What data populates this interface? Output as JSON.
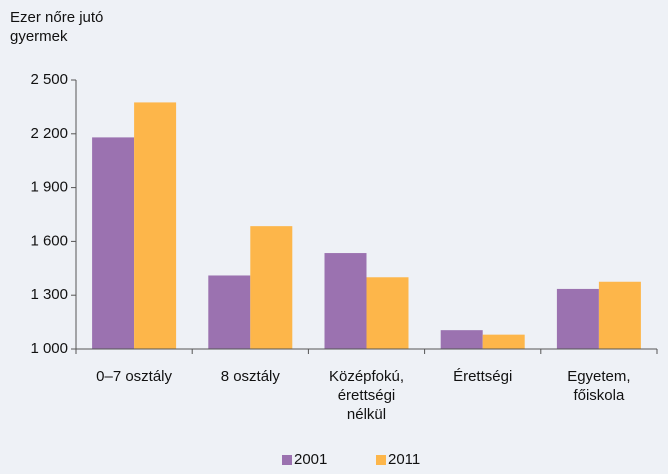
{
  "chart_data": {
    "type": "bar",
    "y_label": "Ezer nőre jutó\ngyermek",
    "categories": [
      "0–7 osztály",
      "8 osztály",
      "Középfokú,\nérettségi\nnélkül",
      "Érettségi",
      "Egyetem,\nfőiskola"
    ],
    "series": [
      {
        "name": "2001",
        "color": "#9b72b0",
        "values": [
          2180,
          1410,
          1535,
          1105,
          1335
        ]
      },
      {
        "name": "2011",
        "color": "#fdb64a",
        "values": [
          2375,
          1685,
          1400,
          1080,
          1375
        ]
      }
    ],
    "ylim": [
      1000,
      2500
    ],
    "yticks": [
      {
        "value": 1000,
        "label": "1 000"
      },
      {
        "value": 1300,
        "label": "1 300"
      },
      {
        "value": 1600,
        "label": "1 600"
      },
      {
        "value": 1900,
        "label": "1 900"
      },
      {
        "value": 2200,
        "label": "2 200"
      },
      {
        "value": 2500,
        "label": "2 500"
      }
    ],
    "grid": false,
    "legend": "bottom"
  }
}
